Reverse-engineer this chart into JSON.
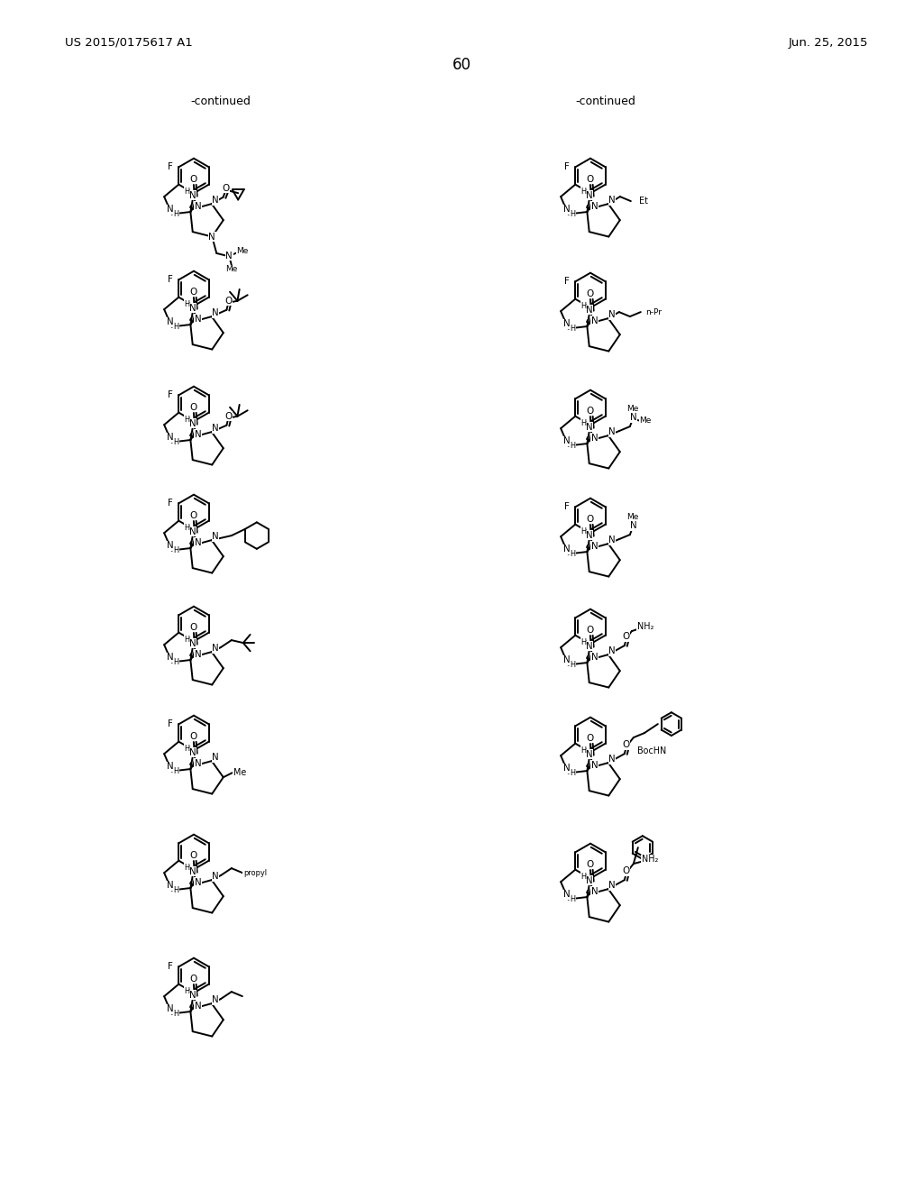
{
  "patent_left": "US 2015/0175617 A1",
  "patent_right": "Jun. 25, 2015",
  "page_number": "60",
  "continued": "-continued",
  "bg": "#ffffff",
  "lw": 1.4
}
